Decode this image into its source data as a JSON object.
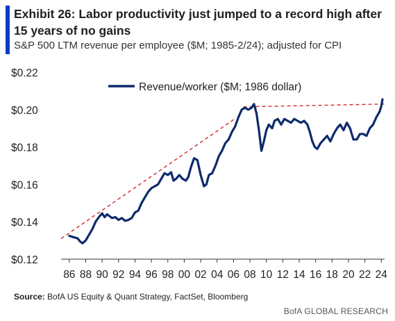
{
  "header": {
    "title": "Exhibit 26: Labor productivity just jumped to a record high after 15 years of no gains",
    "subtitle": "S&P 500 LTM revenue per employee ($M; 1985-2/24); adjusted for CPI"
  },
  "footer": {
    "source_label": "Source:",
    "source_text": "BofA US Equity & Quant Strategy, FactSet, Bloomberg",
    "brand": "BofA GLOBAL RESEARCH"
  },
  "colors": {
    "accent": "#0a3cc8",
    "series": "#0d2a6b",
    "trend": "#d42a2a",
    "text": "#1f1f1f"
  },
  "chart_data": {
    "type": "line",
    "title": "Exhibit 26: Labor productivity just jumped to a record high after 15 years of no gains",
    "subtitle": "S&P 500 LTM revenue per employee ($M; 1985-2/24); adjusted for CPI",
    "xlabel": "",
    "ylabel": "",
    "xlim": [
      1985,
      2024.4
    ],
    "ylim": [
      0.12,
      0.22
    ],
    "grid": false,
    "legend_position": "top-center",
    "x_tick_labels": [
      "86",
      "88",
      "90",
      "92",
      "94",
      "96",
      "98",
      "00",
      "02",
      "04",
      "06",
      "08",
      "10",
      "12",
      "14",
      "16",
      "18",
      "20",
      "22",
      "24"
    ],
    "x_tick_years": [
      1986,
      1988,
      1990,
      1992,
      1994,
      1996,
      1998,
      2000,
      2002,
      2004,
      2006,
      2008,
      2010,
      2012,
      2014,
      2016,
      2018,
      2020,
      2022,
      2024
    ],
    "y_tick_labels": [
      "$0.12",
      "$0.14",
      "$0.16",
      "$0.18",
      "$0.20",
      "$0.22"
    ],
    "y_tick_values": [
      0.12,
      0.14,
      0.16,
      0.18,
      0.2,
      0.22
    ],
    "series": [
      {
        "name": "Revenue/worker ($M; 1986 dollar)",
        "x": [
          1986.0,
          1986.5,
          1987.0,
          1987.3,
          1987.6,
          1988.0,
          1988.4,
          1988.8,
          1989.2,
          1989.6,
          1990.0,
          1990.3,
          1990.6,
          1990.9,
          1991.2,
          1991.6,
          1992.0,
          1992.4,
          1992.8,
          1993.2,
          1993.6,
          1994.0,
          1994.4,
          1994.8,
          1995.2,
          1995.6,
          1996.0,
          1996.4,
          1996.8,
          1997.2,
          1997.6,
          1998.0,
          1998.4,
          1998.7,
          1999.0,
          1999.4,
          1999.8,
          2000.2,
          2000.5,
          2000.8,
          2001.2,
          2001.6,
          2002.0,
          2002.4,
          2002.7,
          2003.0,
          2003.4,
          2003.8,
          2004.2,
          2004.6,
          2005.0,
          2005.4,
          2005.8,
          2006.2,
          2006.6,
          2007.0,
          2007.4,
          2007.8,
          2008.2,
          2008.5,
          2008.8,
          2009.1,
          2009.4,
          2009.7,
          2010.0,
          2010.3,
          2010.7,
          2011.0,
          2011.4,
          2011.8,
          2012.2,
          2012.6,
          2013.0,
          2013.4,
          2013.8,
          2014.2,
          2014.6,
          2015.0,
          2015.3,
          2015.6,
          2015.9,
          2016.2,
          2016.6,
          2017.0,
          2017.4,
          2017.8,
          2018.2,
          2018.6,
          2019.0,
          2019.4,
          2019.8,
          2020.2,
          2020.6,
          2021.0,
          2021.4,
          2021.8,
          2022.2,
          2022.6,
          2023.0,
          2023.4,
          2023.8,
          2024.0,
          2024.15
        ],
        "values": [
          0.1325,
          0.1318,
          0.1312,
          0.1295,
          0.1285,
          0.13,
          0.133,
          0.136,
          0.14,
          0.1425,
          0.1445,
          0.1425,
          0.144,
          0.143,
          0.142,
          0.1425,
          0.141,
          0.142,
          0.1405,
          0.141,
          0.142,
          0.145,
          0.146,
          0.15,
          0.153,
          0.156,
          0.158,
          0.159,
          0.16,
          0.163,
          0.166,
          0.165,
          0.1665,
          0.162,
          0.163,
          0.165,
          0.163,
          0.162,
          0.164,
          0.169,
          0.174,
          0.173,
          0.165,
          0.159,
          0.16,
          0.165,
          0.166,
          0.17,
          0.175,
          0.178,
          0.182,
          0.184,
          0.188,
          0.191,
          0.196,
          0.2,
          0.201,
          0.2,
          0.201,
          0.203,
          0.198,
          0.189,
          0.178,
          0.183,
          0.189,
          0.192,
          0.19,
          0.194,
          0.195,
          0.192,
          0.195,
          0.194,
          0.193,
          0.195,
          0.194,
          0.193,
          0.194,
          0.192,
          0.188,
          0.183,
          0.18,
          0.179,
          0.182,
          0.184,
          0.186,
          0.183,
          0.187,
          0.19,
          0.192,
          0.189,
          0.193,
          0.19,
          0.184,
          0.184,
          0.187,
          0.187,
          0.186,
          0.19,
          0.192,
          0.196,
          0.199,
          0.202,
          0.2055
        ]
      }
    ],
    "trendlines": [
      {
        "style": "dashed",
        "x": [
          1985.0,
          2006.2
        ],
        "values": [
          0.131,
          0.1952
        ]
      },
      {
        "style": "dashed",
        "x": [
          2007.2,
          2024.4
        ],
        "values": [
          0.2015,
          0.203
        ]
      }
    ]
  }
}
